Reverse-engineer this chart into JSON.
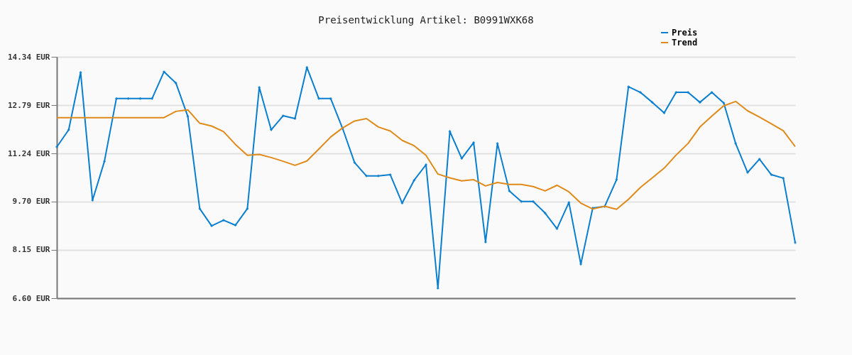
{
  "chart_data": {
    "type": "line",
    "title": "Preisentwicklung Artikel: B0991WXK68",
    "categories": [
      null,
      null,
      null,
      null,
      null,
      null,
      null,
      null,
      null,
      null,
      null,
      null,
      null,
      null,
      null,
      null,
      null,
      null,
      null,
      null,
      null,
      null,
      null,
      null,
      null,
      null,
      null,
      null,
      null,
      null,
      null,
      null,
      null,
      null,
      null,
      null,
      null,
      null,
      null,
      null,
      null,
      null,
      null,
      null,
      null,
      null,
      null,
      null,
      null,
      null,
      null,
      null,
      null,
      null,
      null,
      null,
      null,
      null,
      null,
      null,
      null,
      null,
      null
    ],
    "series": [
      {
        "name": "Preis",
        "color": "#0a7fd0",
        "marker": "diamond",
        "values": [
          11.45,
          12.0,
          13.84,
          9.74,
          10.99,
          13.0,
          13.0,
          13.0,
          13.0,
          13.86,
          13.5,
          12.43,
          9.47,
          8.92,
          9.1,
          8.94,
          9.47,
          13.36,
          12.0,
          12.45,
          12.36,
          14.0,
          13.0,
          13.0,
          12.04,
          10.95,
          10.52,
          10.52,
          10.56,
          9.65,
          10.38,
          10.88,
          6.92,
          11.95,
          11.08,
          11.59,
          8.4,
          11.56,
          10.04,
          9.7,
          9.7,
          9.33,
          8.83,
          9.67,
          7.69,
          9.49,
          9.54,
          10.4,
          13.38,
          13.2,
          12.88,
          12.54,
          13.2,
          13.2,
          12.88,
          13.2,
          12.86,
          11.56,
          10.63,
          11.06,
          10.56,
          10.45,
          8.38
        ]
      },
      {
        "name": "Trend",
        "color": "#e08a1a",
        "values": [
          12.39,
          12.39,
          12.39,
          12.39,
          12.39,
          12.39,
          12.39,
          12.39,
          12.39,
          12.39,
          12.59,
          12.64,
          12.21,
          12.12,
          11.94,
          11.53,
          11.18,
          11.21,
          11.11,
          10.99,
          10.86,
          11.0,
          11.38,
          11.77,
          12.06,
          12.28,
          12.36,
          12.09,
          11.96,
          11.66,
          11.49,
          11.18,
          10.58,
          10.46,
          10.36,
          10.4,
          10.2,
          10.31,
          10.25,
          10.25,
          10.18,
          10.04,
          10.22,
          10.01,
          9.65,
          9.46,
          9.55,
          9.45,
          9.77,
          10.15,
          10.46,
          10.77,
          11.19,
          11.56,
          12.09,
          12.44,
          12.77,
          12.91,
          12.61,
          12.41,
          12.19,
          11.97,
          11.46
        ]
      }
    ],
    "ylim": [
      6.6,
      14.34
    ],
    "yticks": [
      {
        "value": 6.6,
        "label": "6.60 EUR"
      },
      {
        "value": 8.15,
        "label": "8.15 EUR"
      },
      {
        "value": 9.7,
        "label": "9.70 EUR"
      },
      {
        "value": 11.24,
        "label": "11.24 EUR"
      },
      {
        "value": 12.79,
        "label": "12.79 EUR"
      },
      {
        "value": 14.34,
        "label": "14.34 EUR"
      }
    ],
    "grid": "y",
    "legend": "top right",
    "tick_labels": "y"
  }
}
